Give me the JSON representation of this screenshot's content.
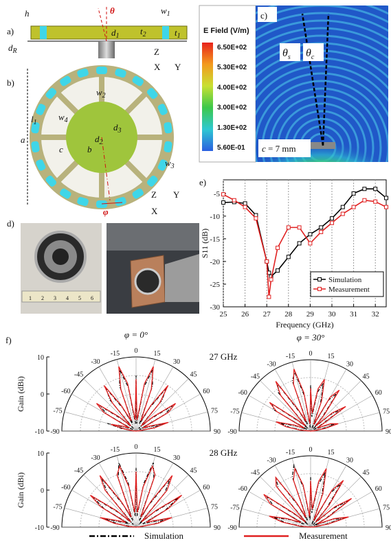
{
  "panel_a": {
    "label": "a)",
    "h": "h",
    "theta": "θ",
    "w1": {
      "text": "w",
      "sub": "1"
    },
    "t2": {
      "text": "t",
      "sub": "2"
    },
    "t1": {
      "text": "t",
      "sub": "1"
    },
    "d1": {
      "text": "d",
      "sub": "1"
    },
    "dR": {
      "text": "d",
      "sub": "R"
    },
    "axes": {
      "z": "Z",
      "x": "X",
      "y": "Y"
    }
  },
  "panel_b": {
    "label": "b)",
    "w2": {
      "text": "w",
      "sub": "2"
    },
    "w4": {
      "text": "w",
      "sub": "4"
    },
    "l1": {
      "text": "l",
      "sub": "1"
    },
    "a": "a",
    "d3": {
      "text": "d",
      "sub": "3"
    },
    "d2": {
      "text": "d",
      "sub": "2"
    },
    "c": "c",
    "b": "b",
    "w3": {
      "text": "w",
      "sub": "3"
    },
    "phi": "φ",
    "axes": {
      "z": "Z",
      "x": "X",
      "y": "Y"
    }
  },
  "panel_c": {
    "label": "c)",
    "colorbar_title": "E Field (V/m)",
    "colorbar": [
      {
        "label": "6.50E+02",
        "color": "#e8231c"
      },
      {
        "label": "5.30E+02",
        "color": "#f39a1e"
      },
      {
        "label": "4.00E+02",
        "color": "#c8e032"
      },
      {
        "label": "3.00E+02",
        "color": "#3cc84a"
      },
      {
        "label": "1.30E+02",
        "color": "#2ec8d2"
      },
      {
        "label": "5.60E-01",
        "color": "#2a5fe0"
      }
    ],
    "theta_s": {
      "text": "θ",
      "sub": "s"
    },
    "theta_c": {
      "text": "θ",
      "sub": "c"
    },
    "spacing": {
      "text": "c",
      "rest": " = 7 mm"
    }
  },
  "panel_d": {
    "label": "d)",
    "ruler": [
      "1",
      "2",
      "3",
      "4",
      "5",
      "6"
    ]
  },
  "panel_e": {
    "label": "e)"
  },
  "panel_f": {
    "label": "f)"
  },
  "chart_data": [
    {
      "type": "line",
      "xlabel": "Frequency (GHz)",
      "ylabel": "S11 (dB)",
      "x": [
        25,
        25.5,
        26,
        26.5,
        27,
        27.1,
        27.2,
        27.5,
        28,
        28.5,
        29,
        29.5,
        30,
        30.5,
        31,
        31.5,
        32,
        32.5
      ],
      "series": [
        {
          "name": "Simulation",
          "color": "#000000",
          "values": [
            -7,
            -6.9,
            -7.2,
            -9.8,
            -20,
            -22.5,
            -23.3,
            -22,
            -19,
            -16,
            -14,
            -12.5,
            -10.5,
            -8,
            -5,
            -4,
            -4,
            -6
          ]
        },
        {
          "name": "Measurement",
          "color": "#e02020",
          "values": [
            -5.2,
            -6.5,
            -8,
            -10.5,
            -20,
            -27.8,
            -24,
            -17,
            -12.5,
            -12.5,
            -16,
            -13.5,
            -11.5,
            -9.5,
            -8,
            -6.5,
            -6.8,
            -8
          ]
        }
      ],
      "xlim": [
        25,
        32.5
      ],
      "xticks": [
        25,
        26,
        27,
        28,
        29,
        30,
        31,
        32
      ],
      "ylim": [
        -30,
        -2
      ],
      "yticks": [
        -30,
        -25,
        -20,
        -15,
        -10,
        -5
      ],
      "grid": true,
      "legend": "lower-right"
    },
    {
      "type": "polar",
      "title": "φ = 0°",
      "annotation": "27 GHz",
      "ylabel": "Gain (dBi)",
      "theta": [
        -90,
        -85,
        -80,
        -75,
        -70,
        -65,
        -60,
        -55,
        -50,
        -45,
        -40,
        -35,
        -30,
        -25,
        -20,
        -15,
        -10,
        -5,
        0,
        5,
        10,
        15,
        20,
        25,
        30,
        35,
        40,
        45,
        50,
        55,
        60,
        65,
        70,
        75,
        80,
        85,
        90
      ],
      "thetaticks": [
        -90,
        -75,
        -60,
        -45,
        -30,
        -15,
        0,
        15,
        30,
        45,
        60,
        75,
        90
      ],
      "rlim": [
        -10,
        10
      ],
      "rticks": [
        -10,
        0,
        10
      ],
      "series": [
        {
          "name": "Simulation",
          "color": "#000000",
          "values": [
            -10,
            -9,
            -6,
            -2,
            -7,
            -9,
            -1,
            2,
            -5,
            -9,
            1,
            4,
            -3,
            -8,
            3,
            7,
            2,
            -8,
            5,
            -8,
            2,
            7,
            3,
            -8,
            -3,
            4,
            1,
            -9,
            -5,
            2,
            -1,
            -9,
            -7,
            -2,
            -6,
            -9,
            -10
          ]
        },
        {
          "name": "Measurement",
          "color": "#e02020",
          "values": [
            -10,
            -9,
            -7,
            -3,
            -6,
            -8,
            0,
            3,
            -4,
            -8,
            0,
            5,
            -2,
            -7,
            2,
            8,
            3,
            -7,
            4,
            -7,
            3,
            8,
            2,
            -7,
            -2,
            5,
            0,
            -8,
            -4,
            3,
            0,
            -8,
            -6,
            -1,
            -5,
            -9,
            -10
          ]
        }
      ]
    },
    {
      "type": "polar",
      "title": "φ = 30°",
      "theta": [
        -90,
        -85,
        -80,
        -75,
        -70,
        -65,
        -60,
        -55,
        -50,
        -45,
        -40,
        -35,
        -30,
        -25,
        -20,
        -15,
        -10,
        -5,
        0,
        5,
        10,
        15,
        20,
        25,
        30,
        35,
        40,
        45,
        50,
        55,
        60,
        65,
        70,
        75,
        80,
        85,
        90
      ],
      "thetaticks": [
        -90,
        -75,
        -60,
        -45,
        -30,
        -15,
        0,
        15,
        30,
        45,
        60,
        75,
        90
      ],
      "rlim": [
        -10,
        10
      ],
      "series": [
        {
          "color": "#000000",
          "values": [
            -10,
            -8,
            -4,
            -1,
            -6,
            -9,
            2,
            3,
            -6,
            -9,
            4,
            6,
            -4,
            -8,
            5,
            7,
            0,
            -9,
            3,
            -6,
            1,
            4,
            -2,
            -9,
            0,
            3,
            -5,
            -9,
            -3,
            1,
            -7,
            -9,
            -5,
            -3,
            -7,
            -9,
            -10
          ]
        },
        {
          "color": "#e02020",
          "values": [
            -10,
            -7,
            -3,
            0,
            -5,
            -8,
            1,
            4,
            -5,
            -8,
            3,
            7,
            -3,
            -7,
            4,
            8,
            1,
            -8,
            2,
            -5,
            2,
            5,
            -1,
            -8,
            1,
            4,
            -4,
            -8,
            -2,
            2,
            -6,
            -8,
            -4,
            -2,
            -6,
            -9,
            -10
          ]
        }
      ]
    },
    {
      "type": "polar",
      "annotation": "28 GHz",
      "ylabel": "Gain (dBi)",
      "theta": [
        -90,
        -85,
        -80,
        -75,
        -70,
        -65,
        -60,
        -55,
        -50,
        -45,
        -40,
        -35,
        -30,
        -25,
        -20,
        -15,
        -10,
        -5,
        0,
        5,
        10,
        15,
        20,
        25,
        30,
        35,
        40,
        45,
        50,
        55,
        60,
        65,
        70,
        75,
        80,
        85,
        90
      ],
      "thetaticks": [
        -90,
        -75,
        -60,
        -45,
        -30,
        -15,
        0,
        15,
        30,
        45,
        60,
        75,
        90
      ],
      "rlim": [
        -10,
        10
      ],
      "rticks": [
        -10,
        0,
        10
      ],
      "series": [
        {
          "color": "#000000",
          "values": [
            -10,
            -9,
            -5,
            -1,
            -6,
            -8,
            0,
            4,
            -4,
            -9,
            2,
            6,
            -3,
            -8,
            4,
            8,
            2,
            -7,
            6,
            -7,
            2,
            8,
            4,
            -8,
            -3,
            6,
            2,
            -9,
            -4,
            4,
            -1,
            -8,
            -6,
            -1,
            -5,
            -9,
            -10
          ]
        },
        {
          "color": "#e02020",
          "values": [
            -10,
            -8,
            -4,
            0,
            -5,
            -7,
            1,
            5,
            -3,
            -8,
            3,
            7,
            -2,
            -7,
            5,
            7,
            1,
            -6,
            5,
            -6,
            1,
            7,
            5,
            -7,
            -2,
            7,
            3,
            -8,
            -3,
            5,
            0,
            -7,
            -5,
            0,
            -4,
            -9,
            -10
          ]
        }
      ]
    },
    {
      "type": "polar",
      "theta": [
        -90,
        -85,
        -80,
        -75,
        -70,
        -65,
        -60,
        -55,
        -50,
        -45,
        -40,
        -35,
        -30,
        -25,
        -20,
        -15,
        -10,
        -5,
        0,
        5,
        10,
        15,
        20,
        25,
        30,
        35,
        40,
        45,
        50,
        55,
        60,
        65,
        70,
        75,
        80,
        85,
        90
      ],
      "thetaticks": [
        -90,
        -75,
        -60,
        -45,
        -30,
        -15,
        0,
        15,
        30,
        45,
        60,
        75,
        90
      ],
      "rlim": [
        -10,
        10
      ],
      "series": [
        {
          "color": "#000000",
          "values": [
            -10,
            -8,
            -3,
            1,
            -4,
            -8,
            2,
            5,
            -5,
            -9,
            4,
            7,
            -3,
            -8,
            5,
            8,
            1,
            -8,
            4,
            -6,
            2,
            6,
            -1,
            -9,
            1,
            5,
            -3,
            -9,
            -2,
            3,
            -5,
            -9,
            -4,
            0,
            -6,
            -9,
            -10
          ]
        },
        {
          "color": "#e02020",
          "values": [
            -10,
            -7,
            -2,
            2,
            -3,
            -7,
            3,
            6,
            -4,
            -8,
            5,
            7,
            -2,
            -7,
            4,
            7,
            2,
            -7,
            3,
            -5,
            3,
            7,
            0,
            -8,
            2,
            6,
            -2,
            -8,
            -1,
            4,
            -4,
            -8,
            -3,
            1,
            -5,
            -9,
            -10
          ]
        }
      ]
    }
  ]
}
